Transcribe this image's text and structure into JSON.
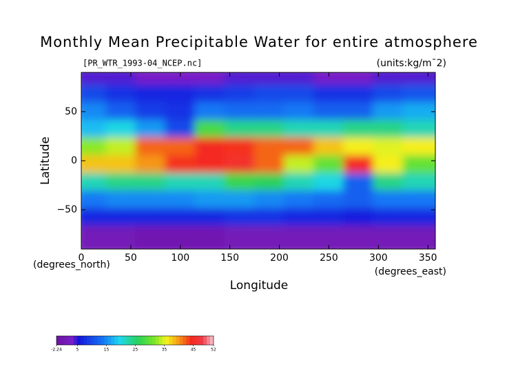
{
  "chart_data": {
    "type": "contour",
    "title": "Monthly Mean Precipitable Water for entire atmosphere",
    "subtitle": "[PR_WTR_1993-04_NCEP.nc]",
    "units": "(units:kg/m¯2)",
    "xlabel": "Longitude",
    "ylabel": "Latitude",
    "xunit": "(degrees_east)",
    "yunit": "(degrees_north)",
    "xlim": [
      0,
      357.5
    ],
    "ylim": [
      -90,
      90
    ],
    "xticks": [
      0,
      50,
      100,
      150,
      200,
      250,
      300,
      350
    ],
    "yticks": [
      {
        "value": -50,
        "label": "−50"
      },
      0,
      50
    ],
    "lons": [
      15,
      45,
      75,
      105,
      135,
      165,
      195,
      225,
      255,
      285,
      315,
      345
    ],
    "lats": [
      81,
      63,
      45,
      27,
      9,
      -9,
      -27,
      -45,
      -63,
      -81
    ],
    "values": [
      [
        4,
        4,
        3,
        3,
        3,
        4,
        4,
        4,
        3,
        3,
        4,
        4
      ],
      [
        10,
        8,
        7,
        7,
        8,
        9,
        10,
        10,
        8,
        8,
        10,
        11
      ],
      [
        15,
        12,
        9,
        8,
        14,
        13,
        13,
        14,
        12,
        12,
        16,
        17
      ],
      [
        18,
        20,
        16,
        10,
        28,
        24,
        24,
        22,
        22,
        24,
        24,
        22
      ],
      [
        32,
        34,
        42,
        42,
        45,
        44,
        42,
        42,
        38,
        36,
        35,
        36
      ],
      [
        38,
        38,
        40,
        44,
        45,
        46,
        42,
        34,
        30,
        45,
        36,
        30
      ],
      [
        22,
        24,
        24,
        22,
        22,
        27,
        26,
        22,
        20,
        12,
        24,
        22
      ],
      [
        14,
        15,
        15,
        15,
        16,
        16,
        15,
        14,
        13,
        12,
        14,
        14
      ],
      [
        7,
        7,
        7,
        7,
        7,
        8,
        8,
        7,
        7,
        6,
        7,
        7
      ],
      [
        1,
        1,
        0,
        0,
        0,
        1,
        1,
        1,
        1,
        1,
        1,
        1
      ]
    ],
    "colorbar_lim": [
      -2.24,
      52
    ],
    "colorbar_ticks": [
      -2.24,
      5,
      15,
      25,
      35,
      45,
      52
    ]
  }
}
